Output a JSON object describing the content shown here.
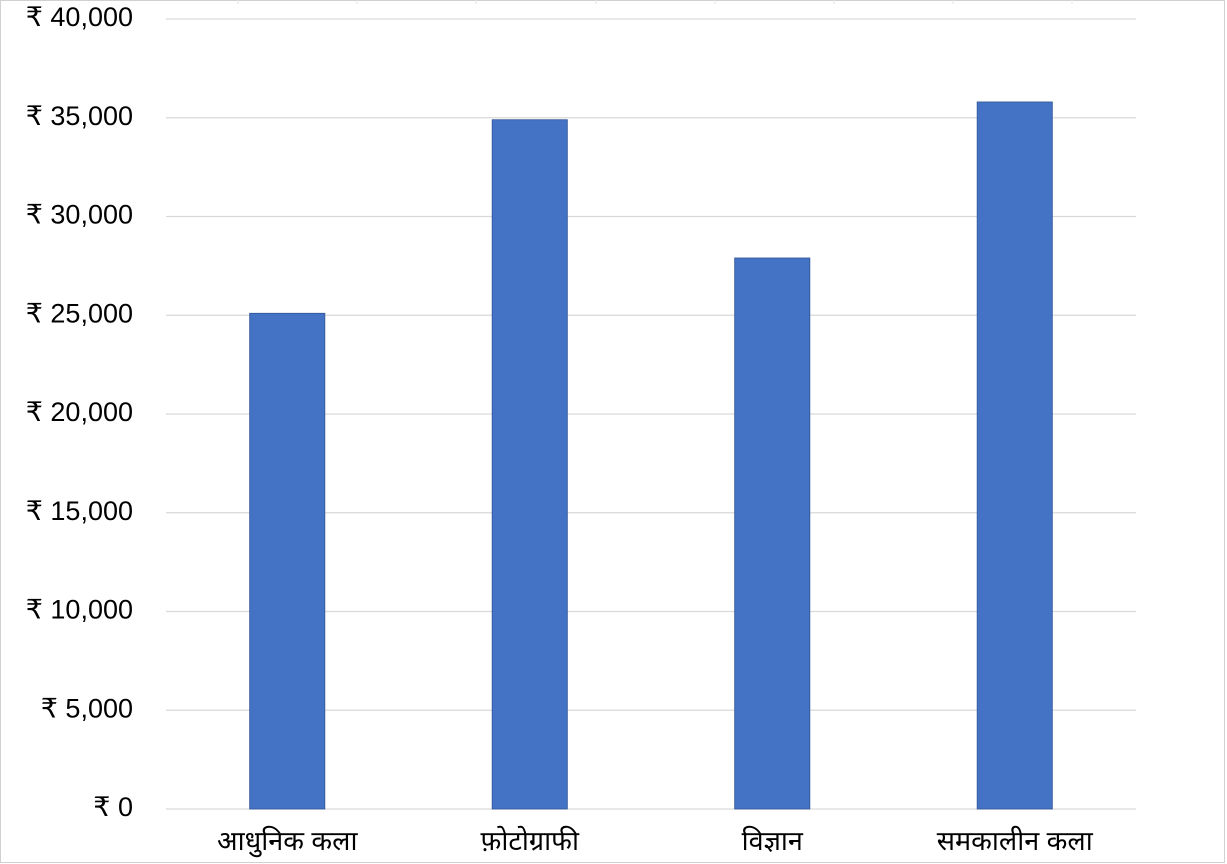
{
  "chart_data": {
    "type": "bar",
    "categories": [
      "आधुनिक कला",
      "फ़ोटोग्राफी",
      "विज्ञान",
      "समकालीन कला"
    ],
    "values": [
      25100,
      34900,
      27900,
      35800
    ],
    "color": "#4472c4",
    "ylim": [
      0,
      40000
    ],
    "yticks": [
      {
        "value": 0,
        "label": "₹ 0"
      },
      {
        "value": 5000,
        "label": "₹ 5,000"
      },
      {
        "value": 10000,
        "label": "₹ 10,000"
      },
      {
        "value": 15000,
        "label": "₹ 15,000"
      },
      {
        "value": 20000,
        "label": "₹ 20,000"
      },
      {
        "value": 25000,
        "label": "₹ 25,000"
      },
      {
        "value": 30000,
        "label": "₹ 30,000"
      },
      {
        "value": 35000,
        "label": "₹ 35,000"
      },
      {
        "value": 40000,
        "label": "₹ 40,000"
      }
    ],
    "grid": true
  }
}
